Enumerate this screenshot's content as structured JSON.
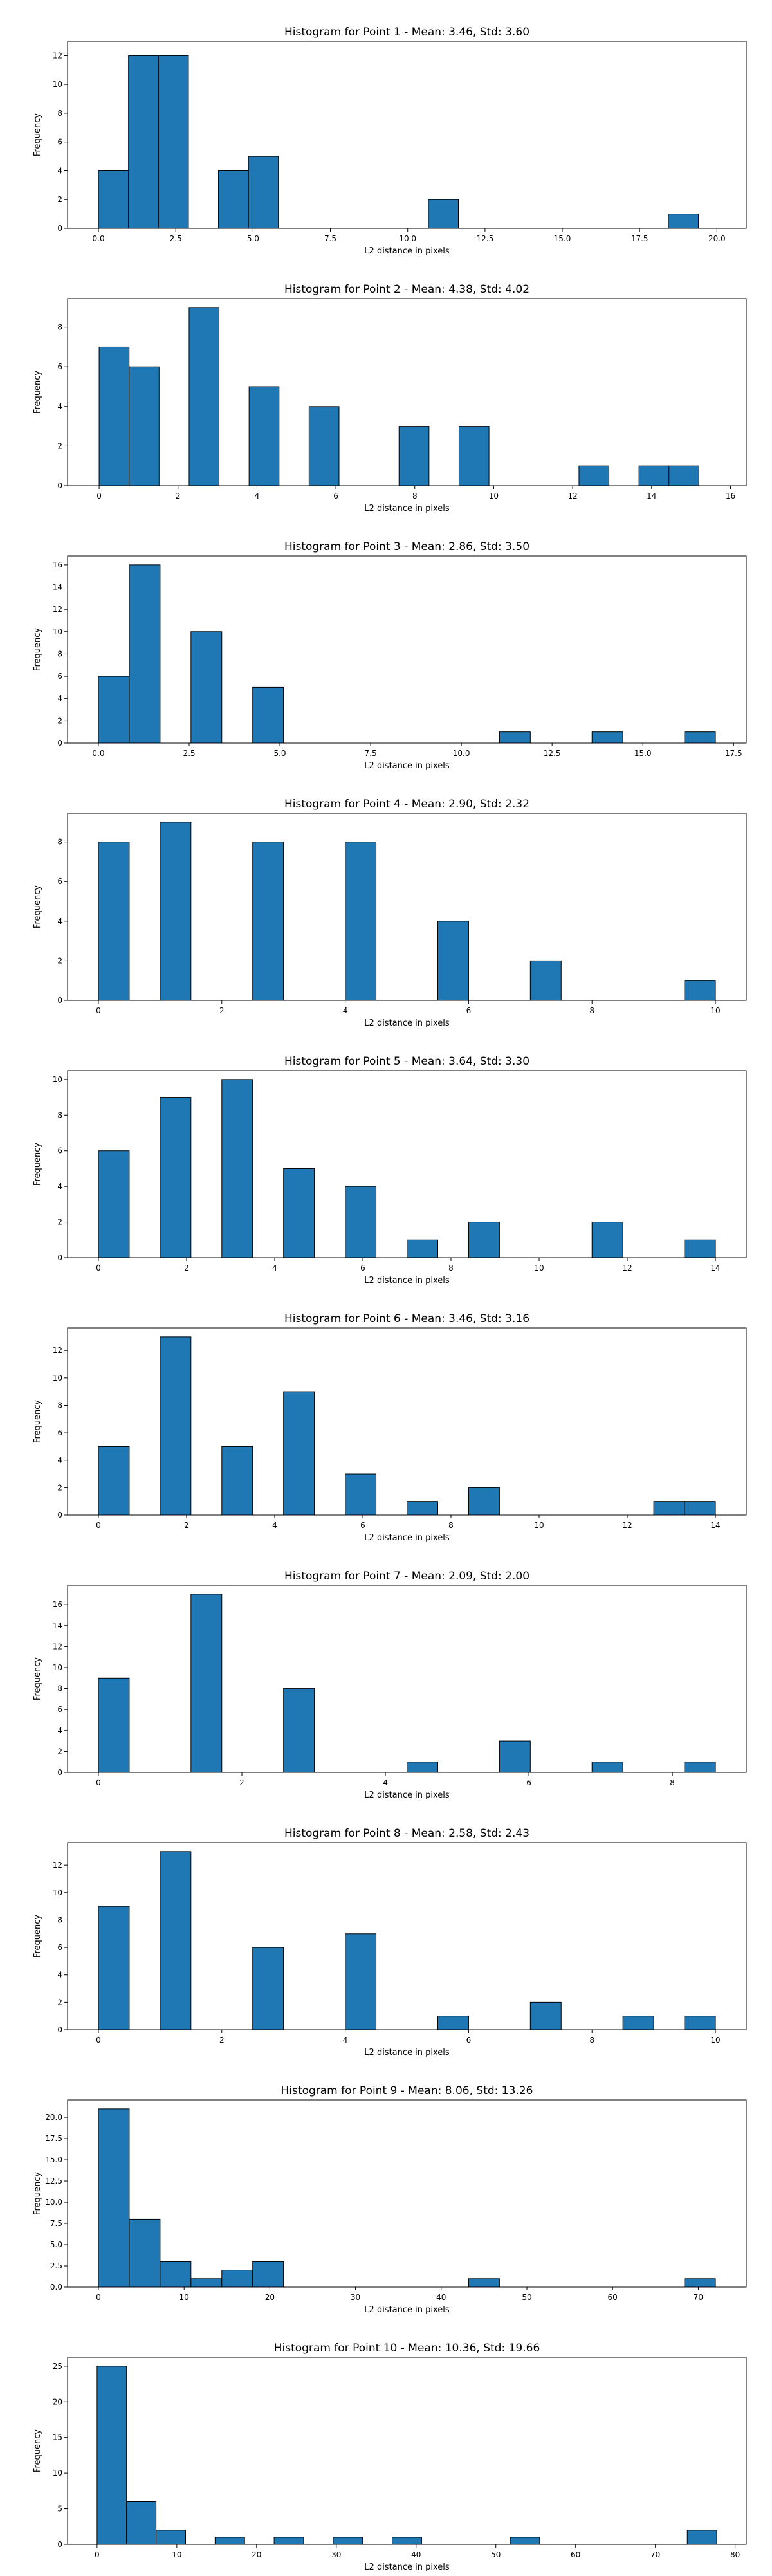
{
  "chart_data": [
    {
      "type": "bar",
      "title": "Histogram for Point 1 - Mean: 3.46, Std: 3.60",
      "xlabel": "L2 distance in pixels",
      "ylabel": "Frequency",
      "xlim": [
        -1.0,
        20.95
      ],
      "ylim": [
        0,
        13
      ],
      "bin_width": 0.97,
      "xticks": [
        0.0,
        2.5,
        5.0,
        7.5,
        10.0,
        12.5,
        15.0,
        17.5,
        20.0
      ],
      "xtick_labels": [
        "0.0",
        "2.5",
        "5.0",
        "7.5",
        "10.0",
        "12.5",
        "15.0",
        "17.5",
        "20.0"
      ],
      "yticks": [
        0,
        2,
        4,
        6,
        8,
        10,
        12
      ],
      "ytick_labels": [
        "0",
        "2",
        "4",
        "6",
        "8",
        "10",
        "12"
      ],
      "bins": [
        {
          "x": 0.0,
          "value": 4
        },
        {
          "x": 0.97,
          "value": 12
        },
        {
          "x": 1.94,
          "value": 12
        },
        {
          "x": 3.88,
          "value": 4
        },
        {
          "x": 4.85,
          "value": 5
        },
        {
          "x": 10.67,
          "value": 2
        },
        {
          "x": 18.43,
          "value": 1
        }
      ]
    },
    {
      "type": "bar",
      "title": "Histogram for Point 2 - Mean: 4.38, Std: 4.02",
      "xlabel": "L2 distance in pixels",
      "ylabel": "Frequency",
      "xlim": [
        -0.8,
        16.4
      ],
      "ylim": [
        0,
        9.45
      ],
      "bin_width": 0.76,
      "xticks": [
        0,
        2,
        4,
        6,
        8,
        10,
        12,
        14,
        16
      ],
      "xtick_labels": [
        "0",
        "2",
        "4",
        "6",
        "8",
        "10",
        "12",
        "14",
        "16"
      ],
      "yticks": [
        0,
        2,
        4,
        6,
        8
      ],
      "ytick_labels": [
        "0",
        "2",
        "4",
        "6",
        "8"
      ],
      "bins": [
        {
          "x": 0.0,
          "value": 7
        },
        {
          "x": 0.76,
          "value": 6
        },
        {
          "x": 2.28,
          "value": 9
        },
        {
          "x": 3.8,
          "value": 5
        },
        {
          "x": 5.32,
          "value": 4
        },
        {
          "x": 7.6,
          "value": 3
        },
        {
          "x": 9.12,
          "value": 3
        },
        {
          "x": 12.16,
          "value": 1
        },
        {
          "x": 13.68,
          "value": 1
        },
        {
          "x": 14.44,
          "value": 1
        }
      ]
    },
    {
      "type": "bar",
      "title": "Histogram for Point 3 - Mean: 2.86, Std: 3.50",
      "xlabel": "L2 distance in pixels",
      "ylabel": "Frequency",
      "xlim": [
        -0.85,
        17.85
      ],
      "ylim": [
        0,
        16.8
      ],
      "bin_width": 0.85,
      "xticks": [
        0.0,
        2.5,
        5.0,
        7.5,
        10.0,
        12.5,
        15.0,
        17.5
      ],
      "xtick_labels": [
        "0.0",
        "2.5",
        "5.0",
        "7.5",
        "10.0",
        "12.5",
        "15.0",
        "17.5"
      ],
      "yticks": [
        0,
        2,
        4,
        6,
        8,
        10,
        12,
        14,
        16
      ],
      "ytick_labels": [
        "0",
        "2",
        "4",
        "6",
        "8",
        "10",
        "12",
        "14",
        "16"
      ],
      "bins": [
        {
          "x": 0.0,
          "value": 6
        },
        {
          "x": 0.85,
          "value": 16
        },
        {
          "x": 2.55,
          "value": 10
        },
        {
          "x": 4.25,
          "value": 5
        },
        {
          "x": 11.05,
          "value": 1
        },
        {
          "x": 13.6,
          "value": 1
        },
        {
          "x": 16.15,
          "value": 1
        }
      ]
    },
    {
      "type": "bar",
      "title": "Histogram for Point 4 - Mean: 2.90, Std: 2.32",
      "xlabel": "L2 distance in pixels",
      "ylabel": "Frequency",
      "xlim": [
        -0.5,
        10.5
      ],
      "ylim": [
        0,
        9.45
      ],
      "bin_width": 0.5,
      "xticks": [
        0,
        2,
        4,
        6,
        8,
        10
      ],
      "xtick_labels": [
        "0",
        "2",
        "4",
        "6",
        "8",
        "10"
      ],
      "yticks": [
        0,
        2,
        4,
        6,
        8
      ],
      "ytick_labels": [
        "0",
        "2",
        "4",
        "6",
        "8"
      ],
      "bins": [
        {
          "x": 0.0,
          "value": 8
        },
        {
          "x": 1.0,
          "value": 9
        },
        {
          "x": 2.5,
          "value": 8
        },
        {
          "x": 4.0,
          "value": 8
        },
        {
          "x": 5.5,
          "value": 4
        },
        {
          "x": 7.0,
          "value": 2
        },
        {
          "x": 9.5,
          "value": 1
        }
      ]
    },
    {
      "type": "bar",
      "title": "Histogram for Point 5 - Mean: 3.64, Std: 3.30",
      "xlabel": "L2 distance in pixels",
      "ylabel": "Frequency",
      "xlim": [
        -0.7,
        14.7
      ],
      "ylim": [
        0,
        10.5
      ],
      "bin_width": 0.7,
      "xticks": [
        0,
        2,
        4,
        6,
        8,
        10,
        12,
        14
      ],
      "xtick_labels": [
        "0",
        "2",
        "4",
        "6",
        "8",
        "10",
        "12",
        "14"
      ],
      "yticks": [
        0,
        2,
        4,
        6,
        8,
        10
      ],
      "ytick_labels": [
        "0",
        "2",
        "4",
        "6",
        "8",
        "10"
      ],
      "bins": [
        {
          "x": 0.0,
          "value": 6
        },
        {
          "x": 1.4,
          "value": 9
        },
        {
          "x": 2.8,
          "value": 10
        },
        {
          "x": 4.2,
          "value": 5
        },
        {
          "x": 5.6,
          "value": 4
        },
        {
          "x": 7.0,
          "value": 1
        },
        {
          "x": 8.4,
          "value": 2
        },
        {
          "x": 11.2,
          "value": 2
        },
        {
          "x": 13.3,
          "value": 1
        }
      ]
    },
    {
      "type": "bar",
      "title": "Histogram for Point 6 - Mean: 3.46, Std: 3.16",
      "xlabel": "L2 distance in pixels",
      "ylabel": "Frequency",
      "xlim": [
        -0.7,
        14.7
      ],
      "ylim": [
        0,
        13.65
      ],
      "bin_width": 0.7,
      "xticks": [
        0,
        2,
        4,
        6,
        8,
        10,
        12,
        14
      ],
      "xtick_labels": [
        "0",
        "2",
        "4",
        "6",
        "8",
        "10",
        "12",
        "14"
      ],
      "yticks": [
        0,
        2,
        4,
        6,
        8,
        10,
        12
      ],
      "ytick_labels": [
        "0",
        "2",
        "4",
        "6",
        "8",
        "10",
        "12"
      ],
      "bins": [
        {
          "x": 0.0,
          "value": 5
        },
        {
          "x": 1.4,
          "value": 13
        },
        {
          "x": 2.8,
          "value": 5
        },
        {
          "x": 4.2,
          "value": 9
        },
        {
          "x": 5.6,
          "value": 3
        },
        {
          "x": 7.0,
          "value": 1
        },
        {
          "x": 8.4,
          "value": 2
        },
        {
          "x": 12.6,
          "value": 1
        },
        {
          "x": 13.3,
          "value": 1
        }
      ]
    },
    {
      "type": "bar",
      "title": "Histogram for Point 7 - Mean: 2.09, Std: 2.00",
      "xlabel": "L2 distance in pixels",
      "ylabel": "Frequency",
      "xlim": [
        -0.43,
        9.03
      ],
      "ylim": [
        0,
        17.85
      ],
      "bin_width": 0.43,
      "xticks": [
        0,
        2,
        4,
        6,
        8
      ],
      "xtick_labels": [
        "0",
        "2",
        "4",
        "6",
        "8"
      ],
      "yticks": [
        0,
        2,
        4,
        6,
        8,
        10,
        12,
        14,
        16
      ],
      "ytick_labels": [
        "0",
        "2",
        "4",
        "6",
        "8",
        "10",
        "12",
        "14",
        "16"
      ],
      "bins": [
        {
          "x": 0.0,
          "value": 9
        },
        {
          "x": 1.29,
          "value": 17
        },
        {
          "x": 2.58,
          "value": 8
        },
        {
          "x": 4.3,
          "value": 1
        },
        {
          "x": 5.59,
          "value": 3
        },
        {
          "x": 6.88,
          "value": 1
        },
        {
          "x": 8.17,
          "value": 1
        }
      ]
    },
    {
      "type": "bar",
      "title": "Histogram for Point 8 - Mean: 2.58, Std: 2.43",
      "xlabel": "L2 distance in pixels",
      "ylabel": "Frequency",
      "xlim": [
        -0.5,
        10.5
      ],
      "ylim": [
        0,
        13.65
      ],
      "bin_width": 0.5,
      "xticks": [
        0,
        2,
        4,
        6,
        8,
        10
      ],
      "xtick_labels": [
        "0",
        "2",
        "4",
        "6",
        "8",
        "10"
      ],
      "yticks": [
        0,
        2,
        4,
        6,
        8,
        10,
        12
      ],
      "ytick_labels": [
        "0",
        "2",
        "4",
        "6",
        "8",
        "10",
        "12"
      ],
      "bins": [
        {
          "x": 0.0,
          "value": 9
        },
        {
          "x": 1.0,
          "value": 13
        },
        {
          "x": 2.5,
          "value": 6
        },
        {
          "x": 4.0,
          "value": 7
        },
        {
          "x": 5.5,
          "value": 1
        },
        {
          "x": 7.0,
          "value": 2
        },
        {
          "x": 8.5,
          "value": 1
        },
        {
          "x": 9.5,
          "value": 1
        }
      ]
    },
    {
      "type": "bar",
      "title": "Histogram for Point 9 - Mean: 8.06, Std: 13.26",
      "xlabel": "L2 distance in pixels",
      "ylabel": "Frequency",
      "xlim": [
        -3.6,
        75.6
      ],
      "ylim": [
        0,
        22.05
      ],
      "bin_width": 3.6,
      "xticks": [
        0,
        10,
        20,
        30,
        40,
        50,
        60,
        70
      ],
      "xtick_labels": [
        "0",
        "10",
        "20",
        "30",
        "40",
        "50",
        "60",
        "70"
      ],
      "yticks": [
        0.0,
        2.5,
        5.0,
        7.5,
        10.0,
        12.5,
        15.0,
        17.5,
        20.0
      ],
      "ytick_labels": [
        "0.0",
        "2.5",
        "5.0",
        "7.5",
        "10.0",
        "12.5",
        "15.0",
        "17.5",
        "20.0"
      ],
      "bins": [
        {
          "x": 0.0,
          "value": 21
        },
        {
          "x": 3.6,
          "value": 8
        },
        {
          "x": 7.2,
          "value": 3
        },
        {
          "x": 10.8,
          "value": 1
        },
        {
          "x": 14.4,
          "value": 2
        },
        {
          "x": 18.0,
          "value": 3
        },
        {
          "x": 43.2,
          "value": 1
        },
        {
          "x": 68.4,
          "value": 1
        }
      ]
    },
    {
      "type": "bar",
      "title": "Histogram for Point 10 - Mean: 10.36, Std: 19.66",
      "xlabel": "L2 distance in pixels",
      "ylabel": "Frequency",
      "xlim": [
        -3.7,
        81.4
      ],
      "ylim": [
        0,
        26.25
      ],
      "bin_width": 3.7,
      "xticks": [
        0,
        10,
        20,
        30,
        40,
        50,
        60,
        70,
        80
      ],
      "xtick_labels": [
        "0",
        "10",
        "20",
        "30",
        "40",
        "50",
        "60",
        "70",
        "80"
      ],
      "yticks": [
        0,
        5,
        10,
        15,
        20,
        25
      ],
      "ytick_labels": [
        "0",
        "5",
        "10",
        "15",
        "20",
        "25"
      ],
      "bins": [
        {
          "x": 0.0,
          "value": 25
        },
        {
          "x": 3.7,
          "value": 6
        },
        {
          "x": 7.4,
          "value": 2
        },
        {
          "x": 14.8,
          "value": 1
        },
        {
          "x": 22.2,
          "value": 1
        },
        {
          "x": 29.6,
          "value": 1
        },
        {
          "x": 37.0,
          "value": 1
        },
        {
          "x": 51.8,
          "value": 1
        },
        {
          "x": 74.0,
          "value": 2
        }
      ]
    }
  ]
}
